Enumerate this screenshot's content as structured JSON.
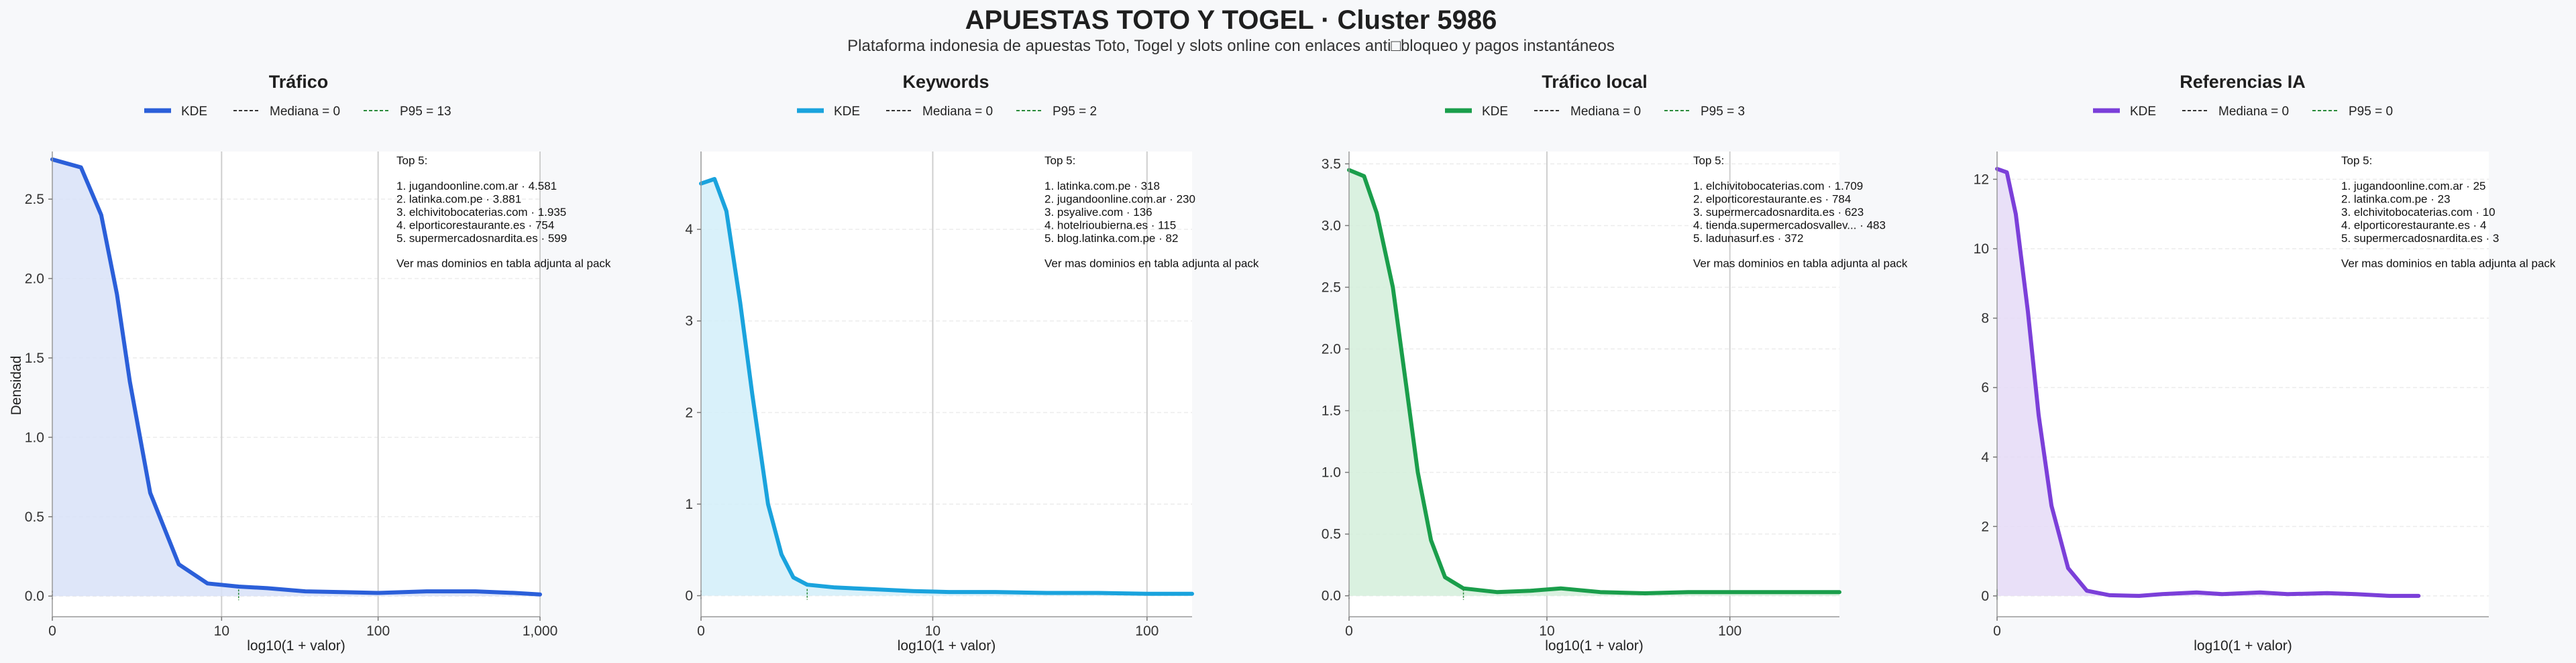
{
  "title": "APUESTAS TOTO Y TOGEL · Cluster 5986",
  "subtitle": "Plataforma indonesia de apuestas Toto, Togel y slots online con enlaces anti□bloqueo y pagos instantáneos",
  "chart_data": [
    {
      "type": "area",
      "title": "Tráfico",
      "color": "#2b5fd9",
      "fill": "#d8e2f8",
      "legend": [
        "KDE",
        "Mediana = 0",
        "P95 = 13"
      ],
      "xlabel": "log10(1 + valor)",
      "ylabel": "Densidad",
      "x_scale": "log10(1+x)",
      "x_ticks": [
        0,
        10,
        100,
        1000
      ],
      "x_tick_labels": [
        "0",
        "10",
        "100",
        "1,000"
      ],
      "xlim": [
        0,
        1000
      ],
      "y_ticks": [
        0,
        0.5,
        1.0,
        1.5,
        2.0,
        2.5
      ],
      "y_tick_labels": [
        "0.0",
        "0.5",
        "1.0",
        "1.5",
        "2.0",
        "2.5"
      ],
      "ylim": [
        -0.13,
        2.8
      ],
      "median": 0,
      "p95": 13,
      "kde": {
        "x": [
          0,
          0.5,
          1,
          1.5,
          2,
          3,
          5,
          8,
          13,
          20,
          35,
          60,
          100,
          200,
          400,
          700,
          1000
        ],
        "y": [
          2.75,
          2.7,
          2.4,
          1.9,
          1.35,
          0.65,
          0.2,
          0.08,
          0.06,
          0.05,
          0.03,
          0.025,
          0.02,
          0.03,
          0.03,
          0.02,
          0.01
        ]
      },
      "annotation": {
        "header": "Top 5:",
        "items": [
          "1. jugandoonline.com.ar · 4.581",
          "2. latinka.com.pe · 3.881",
          "3. elchivitobocaterias.com · 1.935",
          "4. elporticorestaurante.es · 754",
          "5. supermercadosnardita.es · 599"
        ],
        "footer": "Ver mas dominios en tabla adjunta al pack"
      }
    },
    {
      "type": "area",
      "title": "Keywords",
      "color": "#1aa3dd",
      "fill": "#d2eef9",
      "legend": [
        "KDE",
        "Mediana = 0",
        "P95 = 2"
      ],
      "xlabel": "log10(1 + valor)",
      "ylabel": "",
      "x_scale": "log10(1+x)",
      "x_ticks": [
        0,
        10,
        100
      ],
      "x_tick_labels": [
        "0",
        "10",
        "100"
      ],
      "xlim": [
        0,
        160
      ],
      "y_ticks": [
        0,
        1,
        2,
        3,
        4
      ],
      "y_tick_labels": [
        "0",
        "1",
        "2",
        "3",
        "4"
      ],
      "ylim": [
        -0.23,
        4.85
      ],
      "median": 0,
      "p95": 2,
      "kde": {
        "x": [
          0,
          0.15,
          0.3,
          0.5,
          0.7,
          1,
          1.3,
          1.6,
          2,
          3,
          5,
          8,
          12,
          20,
          35,
          60,
          100,
          160
        ],
        "y": [
          4.5,
          4.55,
          4.2,
          3.2,
          2.2,
          1.0,
          0.45,
          0.2,
          0.12,
          0.09,
          0.07,
          0.05,
          0.04,
          0.04,
          0.03,
          0.03,
          0.02,
          0.02
        ]
      },
      "annotation": {
        "header": "Top 5:",
        "items": [
          "1. latinka.com.pe · 318",
          "2. jugandoonline.com.ar · 230",
          "3. psyalive.com · 136",
          "4. hotelrioubierna.es · 115",
          "5. blog.latinka.com.pe · 82"
        ],
        "footer": "Ver mas dominios en tabla adjunta al pack"
      }
    },
    {
      "type": "area",
      "title": "Tráfico local",
      "color": "#1a9e4b",
      "fill": "#d3eedb",
      "legend": [
        "KDE",
        "Mediana = 0",
        "P95 = 3"
      ],
      "xlabel": "log10(1 + valor)",
      "ylabel": "",
      "x_scale": "log10(1+x)",
      "x_ticks": [
        0,
        10,
        100
      ],
      "x_tick_labels": [
        "0",
        "10",
        "100"
      ],
      "xlim": [
        0,
        380
      ],
      "y_ticks": [
        0,
        0.5,
        1.0,
        1.5,
        2.0,
        2.5,
        3.0,
        3.5
      ],
      "y_tick_labels": [
        "0.0",
        "0.5",
        "1.0",
        "1.5",
        "2.0",
        "2.5",
        "3.0",
        "3.5"
      ],
      "ylim": [
        -0.17,
        3.6
      ],
      "median": 0,
      "p95": 3,
      "kde": {
        "x": [
          0,
          0.2,
          0.4,
          0.7,
          1,
          1.3,
          1.7,
          2.2,
          3,
          5,
          8,
          12,
          20,
          35,
          60,
          100,
          200,
          380
        ],
        "y": [
          3.45,
          3.4,
          3.1,
          2.5,
          1.7,
          1.0,
          0.45,
          0.15,
          0.06,
          0.03,
          0.04,
          0.06,
          0.03,
          0.02,
          0.03,
          0.03,
          0.03,
          0.03
        ]
      },
      "annotation": {
        "header": "Top 5:",
        "items": [
          "1. elchivitobocaterias.com · 1.709",
          "2. elporticorestaurante.es · 784",
          "3. supermercadosnardita.es · 623",
          "4. tienda.supermercadosvallev... · 483",
          "5. ladunasurf.es · 372"
        ],
        "footer": "Ver mas dominios en tabla adjunta al pack"
      }
    },
    {
      "type": "area",
      "title": "Referencias IA",
      "color": "#7b3fd9",
      "fill": "#e5dbf7",
      "legend": [
        "KDE",
        "Mediana = 0",
        "P95 = 0"
      ],
      "xlabel": "log10(1 + valor)",
      "ylabel": "",
      "x_scale": "log10(1+x)",
      "x_ticks": [
        0
      ],
      "x_tick_labels": [
        "0"
      ],
      "xlim": [
        0,
        120
      ],
      "y_ticks": [
        0,
        2,
        4,
        6,
        8,
        10,
        12
      ],
      "y_tick_labels": [
        "0",
        "2",
        "4",
        "6",
        "8",
        "10",
        "12"
      ],
      "ylim": [
        -0.6,
        12.8
      ],
      "median": 0,
      "p95": 0,
      "kde": {
        "x": [
          0,
          0.1,
          0.2,
          0.35,
          0.5,
          0.7,
          1,
          1.4,
          2,
          3,
          4,
          6,
          8,
          12,
          16,
          24,
          32,
          45,
          60
        ],
        "y": [
          12.3,
          12.2,
          11.0,
          8.2,
          5.2,
          2.6,
          0.8,
          0.15,
          0.02,
          0.0,
          0.05,
          0.1,
          0.05,
          0.1,
          0.05,
          0.08,
          0.05,
          0.0,
          0.0
        ]
      },
      "annotation": {
        "header": "Top 5:",
        "items": [
          "1. jugandoonline.com.ar · 25",
          "2. latinka.com.pe · 23",
          "3. elchivitobocaterias.com · 10",
          "4. elporticorestaurante.es · 4",
          "5. supermercadosnardita.es · 3"
        ],
        "footer": "Ver mas dominios en tabla adjunta al pack"
      }
    }
  ]
}
